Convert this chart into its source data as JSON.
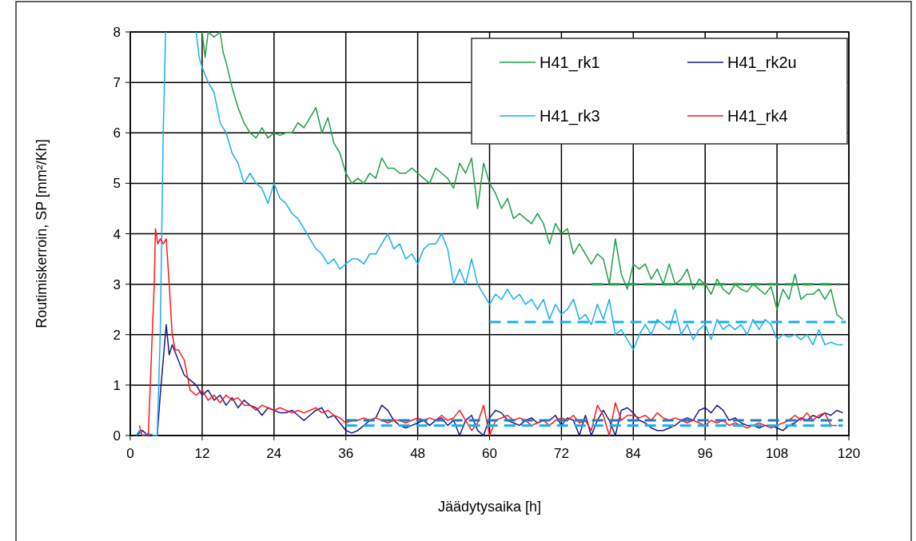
{
  "chart_data": {
    "type": "line",
    "xlabel": "Jäädytysaika [h]",
    "ylabel": "Routimiskerroin, SP  [mm²/Kh]",
    "xlim": [
      0,
      120
    ],
    "ylim": [
      0,
      8
    ],
    "xticks": [
      0,
      12,
      24,
      36,
      48,
      60,
      72,
      84,
      96,
      108,
      120
    ],
    "yticks": [
      0,
      1,
      2,
      3,
      4,
      5,
      6,
      7,
      8
    ],
    "grid": true,
    "legend": "top right",
    "marker": "none",
    "line_style": "solid",
    "series": [
      {
        "name": "H41_rk1",
        "color": "#21a04a",
        "x": [
          12,
          12.5,
          13,
          14,
          15,
          15.5,
          16,
          17,
          18,
          19,
          20,
          21,
          22,
          23,
          24,
          25,
          26,
          27,
          28,
          29,
          30,
          31,
          32,
          33,
          34,
          35,
          36,
          37,
          38,
          39,
          40,
          41,
          42,
          43,
          44,
          45,
          46,
          47,
          48,
          49,
          50,
          51,
          52,
          53,
          54,
          55,
          56,
          57,
          58,
          59,
          60,
          61,
          62,
          63,
          64,
          65,
          66,
          67,
          68,
          69,
          70,
          71,
          72,
          73,
          74,
          75,
          76,
          77,
          78,
          79,
          80,
          81,
          82,
          83,
          84,
          85,
          86,
          87,
          88,
          89,
          90,
          91,
          92,
          93,
          94,
          95,
          96,
          97,
          98,
          99,
          100,
          101,
          102,
          103,
          104,
          105,
          106,
          107,
          108,
          109,
          110,
          111,
          112,
          113,
          114,
          115,
          116,
          117,
          118,
          119
        ],
        "values": [
          8.0,
          7.5,
          8.0,
          7.9,
          8.0,
          7.6,
          7.4,
          6.9,
          6.5,
          6.2,
          6.0,
          5.9,
          6.1,
          5.9,
          6.0,
          5.95,
          6.0,
          6.0,
          6.2,
          6.1,
          6.3,
          6.5,
          6.0,
          6.3,
          5.8,
          5.6,
          5.2,
          5.0,
          5.1,
          5.0,
          5.2,
          5.1,
          5.5,
          5.3,
          5.3,
          5.2,
          5.2,
          5.3,
          5.2,
          5.1,
          5.0,
          5.3,
          5.2,
          5.1,
          4.9,
          5.4,
          5.2,
          5.5,
          4.5,
          5.4,
          5.0,
          4.8,
          4.5,
          4.7,
          4.3,
          4.4,
          4.3,
          4.2,
          4.4,
          4.2,
          3.8,
          4.2,
          4.0,
          4.1,
          3.6,
          3.8,
          3.6,
          3.4,
          3.6,
          3.5,
          3.0,
          3.9,
          3.2,
          2.9,
          3.4,
          3.3,
          3.4,
          3.1,
          3.3,
          3.0,
          3.4,
          3.0,
          3.1,
          3.3,
          2.9,
          3.1,
          3.0,
          2.8,
          3.1,
          2.9,
          2.8,
          3.0,
          2.9,
          2.85,
          3.0,
          2.9,
          2.8,
          2.95,
          2.5,
          2.9,
          2.7,
          3.2,
          2.7,
          2.8,
          2.8,
          2.9,
          2.7,
          2.9,
          2.4,
          2.3
        ]
      },
      {
        "name": "H41_rk2u",
        "color": "#1a1a8c",
        "x": [
          1,
          2,
          3,
          4.5,
          5,
          5.5,
          6,
          6.5,
          7,
          8,
          9,
          10,
          11,
          12,
          13,
          14,
          15,
          16,
          17,
          18,
          19,
          20,
          21,
          22,
          23,
          24,
          25,
          26,
          27,
          28,
          29,
          30,
          31,
          32,
          33,
          34,
          35,
          36,
          37,
          38,
          39,
          40,
          41,
          42,
          43,
          44,
          45,
          46,
          47,
          48,
          49,
          50,
          51,
          52,
          53,
          54,
          55,
          56,
          57,
          58,
          59,
          60,
          61,
          62,
          63,
          64,
          65,
          66,
          67,
          68,
          69,
          70,
          71,
          72,
          73,
          74,
          75,
          76,
          77,
          78,
          79,
          80,
          81,
          82,
          83,
          84,
          85,
          86,
          87,
          88,
          89,
          90,
          91,
          92,
          93,
          94,
          95,
          96,
          97,
          98,
          99,
          100,
          101,
          102,
          103,
          104,
          105,
          106,
          107,
          108,
          109,
          110,
          111,
          112,
          113,
          114,
          115,
          116,
          117,
          118,
          119
        ],
        "values": [
          0,
          0.1,
          0,
          0,
          0.8,
          1.5,
          2.2,
          1.6,
          1.8,
          1.5,
          1.2,
          1.1,
          1.0,
          0.8,
          0.9,
          0.7,
          0.8,
          0.6,
          0.75,
          0.55,
          0.7,
          0.6,
          0.55,
          0.4,
          0.55,
          0.5,
          0.45,
          0.45,
          0.5,
          0.4,
          0.3,
          0.4,
          0.5,
          0.55,
          0.35,
          0.4,
          0.25,
          0.1,
          0.05,
          0.1,
          0.2,
          0.3,
          0.35,
          0.6,
          0.5,
          0.3,
          0.2,
          0.15,
          0.2,
          0.25,
          0.3,
          0.2,
          0.3,
          0.35,
          0.2,
          0.3,
          0.0,
          0.3,
          0.4,
          0.1,
          0.0,
          0.35,
          0.5,
          0.45,
          0.3,
          0.25,
          0.2,
          0.3,
          0.35,
          0.25,
          0.3,
          0.3,
          0.4,
          0.2,
          0.35,
          0.3,
          0.0,
          0.4,
          0.0,
          0.3,
          0.5,
          0.3,
          0.0,
          0.5,
          0.55,
          0.45,
          0.3,
          0.25,
          0.15,
          0.1,
          0.1,
          0.15,
          0.2,
          0.3,
          0.35,
          0.3,
          0.5,
          0.55,
          0.45,
          0.6,
          0.5,
          0.3,
          0.35,
          0.25,
          0.2,
          0.2,
          0.15,
          0.2,
          0.2,
          0.15,
          0.1,
          0.2,
          0.25,
          0.35,
          0.3,
          0.4,
          0.35,
          0.45,
          0.4,
          0.5,
          0.45
        ]
      },
      {
        "name": "H41_rk3",
        "color": "#1ab0f0",
        "x": [
          1,
          1.5,
          2,
          3,
          4,
          4.5,
          5,
          5.5,
          5.9,
          6,
          11,
          11.5,
          12,
          13,
          14,
          15,
          16,
          17,
          18,
          19,
          20,
          21,
          22,
          23,
          24,
          25,
          26,
          27,
          28,
          29,
          30,
          31,
          32,
          33,
          34,
          35,
          36,
          37,
          38,
          39,
          40,
          41,
          42,
          43,
          44,
          45,
          46,
          47,
          48,
          49,
          50,
          51,
          52,
          53,
          54,
          55,
          56,
          57,
          58,
          59,
          60,
          61,
          62,
          63,
          64,
          65,
          66,
          67,
          68,
          69,
          70,
          71,
          72,
          73,
          74,
          75,
          76,
          77,
          78,
          79,
          80,
          81,
          82,
          83,
          84,
          85,
          86,
          87,
          88,
          89,
          90,
          91,
          92,
          93,
          94,
          95,
          96,
          97,
          98,
          99,
          100,
          101,
          102,
          103,
          104,
          105,
          106,
          107,
          108,
          109,
          110,
          111,
          112,
          113,
          114,
          115,
          116,
          117,
          118,
          119
        ],
        "values": [
          0,
          0.1,
          0,
          0.05,
          0,
          0,
          2,
          6,
          8,
          null,
          8,
          7.5,
          7.3,
          7.0,
          6.8,
          6.2,
          6.0,
          5.6,
          5.4,
          5.0,
          5.2,
          5.0,
          4.9,
          4.6,
          5.0,
          4.7,
          4.6,
          4.4,
          4.3,
          4.1,
          3.9,
          3.7,
          3.6,
          3.4,
          3.5,
          3.3,
          3.4,
          3.5,
          3.5,
          3.4,
          3.6,
          3.6,
          3.8,
          4.0,
          3.7,
          3.8,
          3.5,
          3.6,
          3.4,
          3.7,
          3.8,
          3.8,
          4.0,
          3.7,
          3.0,
          3.3,
          3.0,
          3.5,
          3.0,
          2.8,
          2.6,
          2.8,
          2.7,
          2.9,
          2.7,
          2.8,
          2.6,
          2.7,
          2.5,
          2.7,
          2.3,
          2.6,
          2.4,
          2.5,
          2.7,
          2.3,
          2.4,
          2.2,
          2.6,
          2.3,
          2.7,
          2.0,
          2.1,
          1.9,
          1.7,
          2.0,
          2.2,
          2.0,
          2.3,
          2.2,
          2.1,
          2.5,
          2.0,
          2.2,
          1.9,
          2.1,
          2.2,
          1.9,
          2.3,
          2.1,
          2.2,
          2.1,
          2.2,
          2.0,
          2.3,
          2.1,
          2.3,
          2.2,
          1.9,
          2.0,
          1.95,
          2.0,
          1.9,
          2.0,
          1.8,
          2.1,
          1.8,
          1.85,
          1.8,
          1.8
        ]
      },
      {
        "name": "H41_rk4",
        "color": "#ff1a1a",
        "x": [
          1.5,
          2,
          3,
          3.5,
          4,
          4.2,
          4.6,
          5,
          5.5,
          6,
          6.5,
          7,
          7.5,
          8,
          9,
          10,
          11,
          12,
          13,
          14,
          15,
          16,
          17,
          18,
          19,
          20,
          21,
          22,
          23,
          24,
          25,
          26,
          27,
          28,
          29,
          30,
          31,
          32,
          33,
          34,
          35,
          36,
          37,
          38,
          39,
          40,
          41,
          42,
          43,
          44,
          45,
          46,
          47,
          48,
          49,
          50,
          51,
          52,
          53,
          54,
          55,
          56,
          57,
          58,
          59,
          60,
          61,
          62,
          63,
          64,
          65,
          66,
          67,
          68,
          69,
          70,
          71,
          72,
          73,
          74,
          75,
          76,
          77,
          78,
          79,
          80,
          81,
          82,
          83,
          84,
          85,
          86,
          87,
          88,
          89,
          90,
          91,
          92,
          93,
          94,
          95,
          96,
          97,
          98,
          99,
          100,
          101,
          102,
          103,
          104,
          105,
          106,
          107,
          108,
          109,
          110,
          111,
          112,
          113,
          114,
          115,
          116,
          117,
          118
        ],
        "values": [
          0.2,
          0,
          0,
          1.5,
          3.0,
          4.1,
          3.8,
          3.9,
          3.8,
          3.9,
          3.0,
          2.0,
          1.7,
          1.7,
          1.5,
          0.9,
          0.8,
          0.9,
          0.7,
          0.8,
          0.65,
          0.8,
          0.7,
          0.75,
          0.6,
          0.6,
          0.5,
          0.6,
          0.55,
          0.5,
          0.55,
          0.5,
          0.45,
          0.5,
          0.45,
          0.5,
          0.55,
          0.45,
          0.5,
          0.4,
          0.35,
          0.25,
          0.3,
          0.3,
          0.35,
          0.3,
          0.35,
          0.3,
          0.25,
          0.3,
          0.3,
          0.25,
          0.3,
          0.35,
          0.3,
          0.35,
          0.3,
          0.4,
          0.3,
          0.35,
          0.5,
          0.3,
          0.1,
          0.25,
          0.6,
          0.0,
          0.3,
          0.35,
          0.4,
          0.3,
          0.35,
          0.3,
          0.2,
          0.25,
          0.3,
          0.2,
          0.3,
          0.35,
          0.3,
          0.4,
          0.25,
          0.3,
          0.1,
          0.6,
          0.4,
          0.0,
          0.65,
          0.3,
          0.4,
          0.4,
          0.35,
          0.4,
          0.3,
          0.45,
          0.35,
          0.3,
          0.35,
          0.3,
          0.25,
          0.3,
          0.25,
          0.2,
          0.3,
          0.25,
          0.3,
          0.2,
          0.25,
          0.2,
          0.15,
          0.2,
          0.25,
          0.2,
          0.15,
          0.2,
          0.25,
          0.3,
          0.4,
          0.3,
          0.45,
          0.3,
          0.4,
          0.45,
          0.2,
          0.2
        ]
      },
      {
        "color": "#21a04a",
        "line_style": "dashed",
        "x": [
          77,
          118.5
        ],
        "values": [
          3,
          3
        ]
      },
      {
        "color": "#1ab0f0",
        "line_style": "dashed",
        "x": [
          60,
          119.5
        ],
        "values": [
          2.25,
          2.25
        ]
      },
      {
        "color": "#1ab0f0",
        "line_style": "dashed",
        "x": [
          36,
          119
        ],
        "values": [
          0.2,
          0.2
        ]
      },
      {
        "color": "#2a78c0",
        "line_style": "dashed",
        "x": [
          36,
          119
        ],
        "values": [
          0.3,
          0.3
        ]
      }
    ]
  }
}
